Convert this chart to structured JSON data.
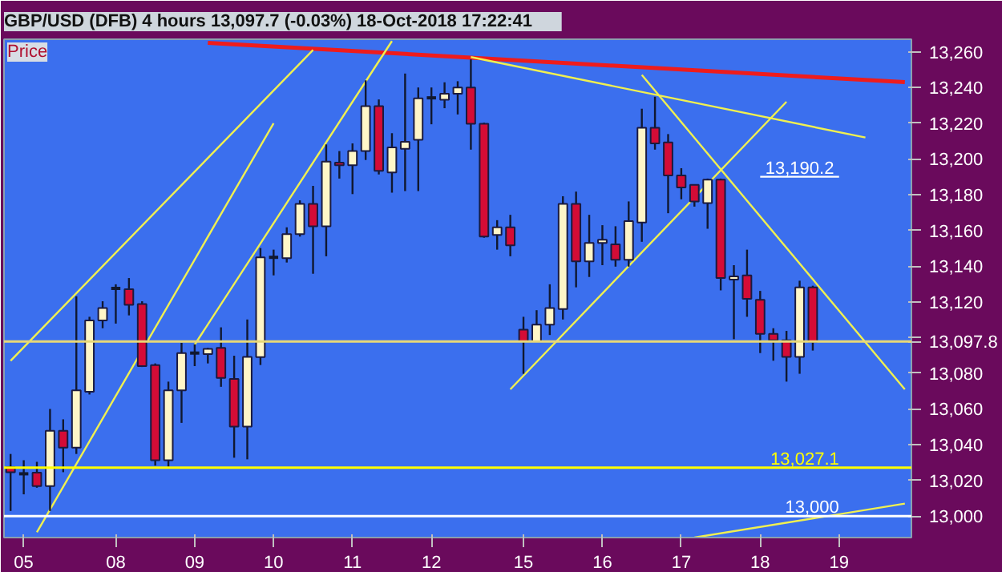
{
  "chart_data": {
    "type": "candlestick",
    "title": "GBP/USD (DFB)   4 hours   13,097.7 (-0.03%)   18-Oct-2018 17:22:41",
    "annotations": [
      "Price"
    ],
    "categories": [
      null,
      "05",
      null,
      null,
      null,
      null,
      null,
      null,
      "08",
      null,
      null,
      null,
      null,
      null,
      "09",
      null,
      null,
      null,
      null,
      null,
      "10",
      null,
      null,
      null,
      null,
      null,
      "11",
      null,
      null,
      null,
      null,
      null,
      "12",
      null,
      null,
      null,
      null,
      null,
      null,
      "15",
      null,
      null,
      null,
      null,
      null,
      "16",
      null,
      null,
      null,
      null,
      null,
      "17",
      null,
      null,
      null,
      null,
      null,
      "18",
      null,
      null,
      null,
      null,
      null,
      "19",
      null,
      null,
      null,
      null,
      null
    ],
    "ohlc": [
      [
        13027.5,
        13034.8,
        13002.9,
        13024.6
      ],
      [
        13023.7,
        13031.3,
        13012.2,
        13023.7
      ],
      [
        13024.3,
        13030.4,
        13015.9,
        13016.8
      ],
      [
        13016.8,
        13060.0,
        13002.9,
        13047.8
      ],
      [
        13047.8,
        13054.2,
        13024.6,
        13038.3
      ],
      [
        13038.3,
        13123.1,
        13034.8,
        13070.4
      ],
      [
        13069.6,
        13111.6,
        13068.1,
        13109.6
      ],
      [
        13109.6,
        13120.3,
        13105.2,
        13116.5
      ],
      [
        13127.5,
        13129.8,
        13107.8,
        13127.5
      ],
      [
        13127.0,
        13133.3,
        13112.4,
        13118.3
      ],
      [
        13118.8,
        13120.3,
        13083.5,
        13084.0
      ],
      [
        13084.6,
        13085.5,
        13028.3,
        13031.3
      ],
      [
        13031.3,
        13075.3,
        13027.5,
        13070.4
      ],
      [
        13070.4,
        13097.0,
        13052.2,
        13091.3
      ],
      [
        13091.3,
        13096.2,
        13084.0,
        13091.3
      ],
      [
        13090.7,
        13094.2,
        13085.5,
        13093.6
      ],
      [
        13094.2,
        13105.7,
        13072.4,
        13077.4
      ],
      [
        13076.8,
        13089.8,
        13032.7,
        13050.1
      ],
      [
        13050.1,
        13110.1,
        13031.8,
        13089.2
      ],
      [
        13089.0,
        13150.1,
        13084.6,
        13144.9
      ],
      [
        13144.9,
        13149.2,
        13134.8,
        13144.9
      ],
      [
        13144.4,
        13161.7,
        13142.0,
        13157.9
      ],
      [
        13157.9,
        13176.8,
        13156.5,
        13174.8
      ],
      [
        13174.8,
        13184.9,
        13135.7,
        13162.3
      ],
      [
        13162.3,
        13208.1,
        13145.5,
        13198.5
      ],
      [
        13197.9,
        13204.4,
        13189.0,
        13196.5
      ],
      [
        13196.5,
        13208.7,
        13180.3,
        13204.4
      ],
      [
        13204.4,
        13244.0,
        13199.4,
        13229.6
      ],
      [
        13229.6,
        13233.3,
        13191.3,
        13193.3
      ],
      [
        13192.4,
        13214.4,
        13181.1,
        13206.4
      ],
      [
        13205.7,
        13247.8,
        13182.0,
        13209.6
      ],
      [
        13210.7,
        13240.0,
        13182.0,
        13233.9
      ],
      [
        13234.2,
        13240.0,
        13219.4,
        13234.2
      ],
      [
        13233.1,
        13242.9,
        13228.4,
        13236.5
      ],
      [
        13236.5,
        13243.5,
        13224.9,
        13240.0
      ],
      [
        13240.0,
        13255.7,
        13205.2,
        13219.7
      ],
      [
        13219.7,
        13220.3,
        13155.9,
        13156.5
      ],
      [
        13157.4,
        13165.7,
        13149.2,
        13161.7
      ],
      [
        13161.7,
        13168.7,
        13145.5,
        13151.6
      ],
      [
        13104.4,
        13111.6,
        13079.7,
        13097.9
      ],
      [
        13097.9,
        13115.3,
        13097.9,
        13107.2
      ],
      [
        13107.2,
        13129.8,
        13101.4,
        13116.5
      ],
      [
        13115.9,
        13179.1,
        13110.1,
        13174.8
      ],
      [
        13174.8,
        13181.7,
        13128.1,
        13142.6
      ],
      [
        13142.6,
        13168.7,
        13133.9,
        13153.0
      ],
      [
        13153.0,
        13162.9,
        13140.5,
        13154.8
      ],
      [
        13152.2,
        13162.3,
        13139.7,
        13143.5
      ],
      [
        13143.5,
        13176.2,
        13139.7,
        13165.2
      ],
      [
        13164.4,
        13228.1,
        13153.6,
        13217.4
      ],
      [
        13217.4,
        13234.8,
        13205.2,
        13208.7
      ],
      [
        13209.2,
        13213.9,
        13169.6,
        13190.7
      ],
      [
        13190.7,
        13194.8,
        13177.4,
        13184.0
      ],
      [
        13185.5,
        13185.5,
        13173.3,
        13176.2
      ],
      [
        13175.3,
        13189.0,
        13160.9,
        13188.4
      ],
      [
        13188.4,
        13189.0,
        13126.4,
        13133.3
      ],
      [
        13132.4,
        13140.5,
        13099.1,
        13134.2
      ],
      [
        13134.8,
        13149.2,
        13111.6,
        13121.7
      ],
      [
        13121.1,
        13126.1,
        13091.3,
        13102.0
      ],
      [
        13102.0,
        13105.2,
        13087.0,
        13098.5
      ],
      [
        13098.5,
        13103.7,
        13075.3,
        13089.2
      ],
      [
        13089.2,
        13131.8,
        13079.7,
        13128.1
      ],
      [
        13128.1,
        13129.0,
        13092.7,
        13097.7
      ],
      null,
      null,
      null,
      null,
      null,
      null,
      null
    ],
    "series": [
      {
        "type": "line",
        "color": "#ee1c1c",
        "values": [
          null,
          null,
          null,
          null,
          null,
          null,
          null,
          null,
          null,
          null,
          null,
          null,
          null,
          null,
          null,
          13265,
          null,
          null,
          null,
          null,
          null,
          null,
          null,
          null,
          null,
          null,
          null,
          null,
          null,
          null,
          null,
          null,
          null,
          null,
          null,
          null,
          null,
          null,
          null,
          null,
          null,
          null,
          null,
          null,
          null,
          null,
          null,
          null,
          null,
          null,
          null,
          null,
          null,
          null,
          null,
          null,
          null,
          null,
          null,
          null,
          null,
          null,
          null,
          null,
          null,
          null,
          null,
          null,
          13243
        ]
      },
      {
        "type": "line",
        "color": "#f0f050",
        "values": [
          13087,
          null,
          null,
          null,
          null,
          null,
          null,
          null,
          null,
          null,
          null,
          null,
          null,
          null,
          null,
          null,
          null,
          null,
          null,
          null,
          null,
          null,
          null,
          13261,
          null,
          null,
          null,
          null,
          null,
          null,
          null,
          null,
          null,
          null,
          null,
          null,
          null,
          null,
          null,
          null,
          null,
          null,
          null,
          null,
          null,
          null,
          null,
          null,
          null,
          null,
          null,
          null,
          null,
          null,
          null,
          null,
          null,
          null,
          null,
          null,
          null,
          null,
          null,
          null,
          null,
          null,
          null,
          null,
          null
        ]
      },
      {
        "type": "line",
        "color": "#f0f050",
        "values": [
          null,
          null,
          12991,
          null,
          null,
          null,
          null,
          null,
          null,
          null,
          null,
          null,
          null,
          null,
          null,
          null,
          null,
          null,
          null,
          null,
          13220,
          null,
          null,
          null,
          null,
          null,
          null,
          null,
          null,
          null,
          null,
          null,
          null,
          null,
          null,
          null,
          null,
          null,
          null,
          null,
          null,
          null,
          null,
          null,
          null,
          null,
          null,
          null,
          null,
          null,
          null,
          null,
          null,
          null,
          null,
          null,
          null,
          null,
          null,
          null,
          null,
          null,
          null,
          null,
          null,
          null,
          null,
          null,
          null
        ]
      },
      {
        "type": "line",
        "color": "#f0f050",
        "values": [
          null,
          null,
          null,
          null,
          null,
          null,
          null,
          null,
          null,
          null,
          null,
          null,
          null,
          null,
          13096,
          null,
          null,
          null,
          null,
          null,
          null,
          null,
          null,
          null,
          null,
          null,
          null,
          null,
          null,
          13266,
          null,
          null,
          null,
          null,
          null,
          null,
          null,
          null,
          null,
          null,
          null,
          null,
          null,
          null,
          null,
          null,
          null,
          null,
          null,
          null,
          null,
          null,
          null,
          null,
          null,
          null,
          null,
          null,
          null,
          null,
          null,
          null,
          null,
          null,
          null,
          null,
          null,
          null,
          null
        ]
      },
      {
        "type": "line",
        "color": "#f0f050",
        "values": [
          null,
          null,
          null,
          null,
          null,
          null,
          null,
          null,
          null,
          null,
          null,
          null,
          null,
          null,
          null,
          null,
          null,
          null,
          null,
          null,
          null,
          null,
          null,
          null,
          null,
          null,
          null,
          null,
          null,
          null,
          null,
          null,
          null,
          null,
          null,
          13257,
          null,
          null,
          null,
          null,
          null,
          null,
          null,
          null,
          null,
          null,
          null,
          null,
          null,
          null,
          null,
          null,
          null,
          null,
          null,
          null,
          null,
          null,
          null,
          null,
          null,
          null,
          null,
          null,
          null,
          13212,
          null,
          null,
          null
        ]
      },
      {
        "type": "line",
        "color": "#f0f050",
        "values": [
          null,
          null,
          null,
          null,
          null,
          null,
          null,
          null,
          null,
          null,
          null,
          null,
          null,
          null,
          null,
          null,
          null,
          null,
          null,
          null,
          null,
          null,
          null,
          null,
          null,
          null,
          null,
          null,
          null,
          null,
          null,
          null,
          null,
          null,
          null,
          null,
          null,
          null,
          13071,
          null,
          null,
          null,
          null,
          null,
          null,
          null,
          null,
          null,
          null,
          null,
          null,
          null,
          null,
          null,
          null,
          null,
          null,
          null,
          null,
          13232,
          null,
          null,
          null,
          null,
          null,
          null,
          null,
          null,
          null
        ]
      },
      {
        "type": "line",
        "color": "#f0f050",
        "values": [
          null,
          null,
          null,
          null,
          null,
          null,
          null,
          null,
          null,
          null,
          null,
          null,
          null,
          null,
          null,
          null,
          null,
          null,
          null,
          null,
          null,
          null,
          null,
          null,
          null,
          null,
          null,
          null,
          null,
          null,
          null,
          null,
          null,
          null,
          null,
          null,
          null,
          null,
          null,
          null,
          null,
          null,
          null,
          null,
          null,
          null,
          null,
          null,
          13247,
          null,
          null,
          null,
          null,
          null,
          null,
          null,
          null,
          null,
          null,
          null,
          null,
          null,
          null,
          null,
          null,
          null,
          null,
          null,
          13071
        ]
      },
      {
        "type": "line",
        "color": "#f0f050",
        "values": [
          null,
          null,
          null,
          null,
          null,
          null,
          null,
          null,
          null,
          null,
          null,
          null,
          null,
          null,
          null,
          null,
          null,
          null,
          null,
          null,
          null,
          null,
          null,
          null,
          null,
          null,
          null,
          null,
          null,
          null,
          null,
          null,
          null,
          null,
          null,
          null,
          null,
          null,
          null,
          null,
          null,
          null,
          null,
          null,
          null,
          null,
          null,
          null,
          null,
          null,
          null,
          null,
          12988,
          null,
          null,
          null,
          null,
          null,
          null,
          null,
          null,
          null,
          null,
          null,
          null,
          null,
          null,
          null,
          13007
        ]
      },
      {
        "type": "line",
        "color": "#ffffff",
        "name": "13,190.2",
        "values": [
          null,
          null,
          null,
          null,
          null,
          null,
          null,
          null,
          null,
          null,
          null,
          null,
          null,
          null,
          null,
          null,
          null,
          null,
          null,
          null,
          null,
          null,
          null,
          null,
          null,
          null,
          null,
          null,
          null,
          null,
          null,
          null,
          null,
          null,
          null,
          null,
          null,
          null,
          null,
          null,
          null,
          null,
          null,
          null,
          null,
          null,
          null,
          null,
          null,
          null,
          null,
          null,
          null,
          null,
          null,
          null,
          null,
          13190,
          null,
          null,
          null,
          null,
          null,
          13190,
          null,
          null,
          null,
          null,
          null
        ]
      }
    ],
    "ref_lines": [
      {
        "axis": "y",
        "value": 13097.8,
        "label": "13,097.8",
        "color": "#e8d878"
      },
      {
        "axis": "y",
        "value": 13027.1,
        "label": "13,027.1",
        "color": "#ffff00"
      },
      {
        "axis": "y",
        "value": 13000,
        "label": "13,000",
        "color": "#ffffff"
      }
    ],
    "ylim": [
      12988,
      13267
    ],
    "yticks": [
      {
        "value": 13000,
        "label": "13,000"
      },
      {
        "value": 13020,
        "label": "13,020"
      },
      {
        "value": 13040,
        "label": "13,040"
      },
      {
        "value": 13060,
        "label": "13,060"
      },
      {
        "value": 13080,
        "label": "13,080"
      },
      {
        "value": 13100,
        "label": null
      },
      {
        "value": 13120,
        "label": "13,120"
      },
      {
        "value": 13140,
        "label": "13,140"
      },
      {
        "value": 13160,
        "label": "13,160"
      },
      {
        "value": 13180,
        "label": "13,180"
      },
      {
        "value": 13200,
        "label": "13,200"
      },
      {
        "value": 13220,
        "label": "13,220"
      },
      {
        "value": 13240,
        "label": "13,240"
      },
      {
        "value": 13260,
        "label": "13,260"
      }
    ],
    "grid": false
  }
}
